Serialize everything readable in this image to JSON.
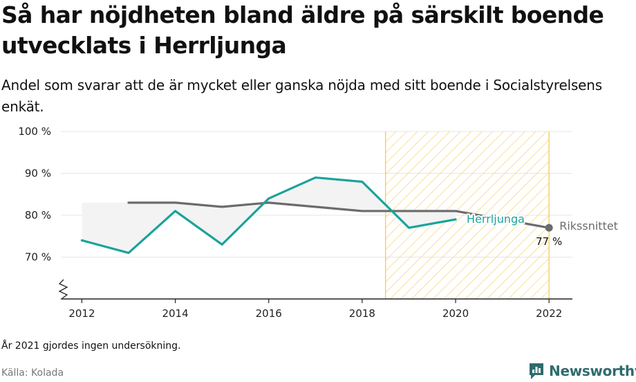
{
  "title": "Så har nöjdheten bland äldre på särskilt boende utvecklats i Herrljunga",
  "subtitle": "Andel som svarar att de är mycket eller ganska nöjda med sitt boende i Socialstyrelsens enkät.",
  "note": "År 2021 gjordes ingen undersökning.",
  "source": "Källa: Kolada",
  "brand": "Newsworthy",
  "colors": {
    "herrljunga": "#1aa39a",
    "riket": "#6b6a6e",
    "hatch": "#f7cf6e",
    "gap_fill": "#f3f3f3",
    "grid": "#e6e6e6",
    "axis": "#222222",
    "brand": "#2f6b6e"
  },
  "chart_data": {
    "type": "line",
    "x_ticks": [
      2012,
      2014,
      2016,
      2018,
      2020,
      2022
    ],
    "y_ticks": [
      70,
      80,
      90,
      100
    ],
    "y_tick_labels": [
      "70 %",
      "80 %",
      "90 %",
      "100 %"
    ],
    "xlim": [
      2011.55,
      2022.5
    ],
    "ylim": [
      60,
      100
    ],
    "y_axis_break": true,
    "grid": "horizontal",
    "highlight_range": [
      2018.5,
      2022
    ],
    "series": [
      {
        "name": "Herrljunga",
        "x": [
          2012,
          2013,
          2014,
          2015,
          2016,
          2017,
          2018,
          2019,
          2020
        ],
        "values": [
          74,
          71,
          81,
          73,
          84,
          89,
          88,
          77,
          79
        ]
      },
      {
        "name": "Rikssnittet",
        "x": [
          2013,
          2014,
          2015,
          2016,
          2017,
          2018,
          2019,
          2020,
          2022
        ],
        "values": [
          83,
          83,
          82,
          83,
          82,
          81,
          81,
          81,
          77
        ]
      }
    ],
    "annotations": [
      {
        "series": "Rikssnittet",
        "x": 2022,
        "y": 77,
        "label": "77 %"
      }
    ]
  }
}
